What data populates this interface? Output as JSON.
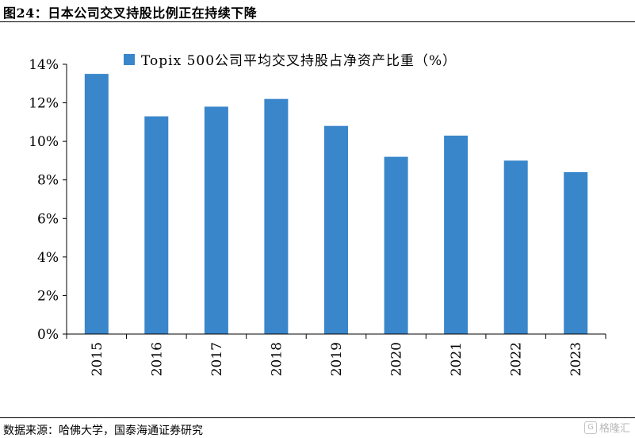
{
  "figure": {
    "title": "图24：日本公司交叉持股比例正在持续下降",
    "source": "数据来源：哈佛大学，国泰海通证券研究",
    "watermark": "格隆汇"
  },
  "chart_data": {
    "type": "bar",
    "title": "",
    "categories": [
      "2015",
      "2016",
      "2017",
      "2018",
      "2019",
      "2020",
      "2021",
      "2022",
      "2023"
    ],
    "series": [
      {
        "name": "Topix 500公司平均交叉持股占净资产比重（%）",
        "values": [
          13.5,
          11.3,
          11.8,
          12.2,
          10.8,
          9.2,
          10.3,
          9.0,
          8.4
        ],
        "color": "#3a86ca"
      }
    ],
    "xlabel": "",
    "ylabel": "",
    "ylim": [
      0,
      14
    ],
    "yticks": [
      0,
      2,
      4,
      6,
      8,
      10,
      12,
      14
    ],
    "ytick_labels": [
      "0%",
      "2%",
      "4%",
      "6%",
      "8%",
      "10%",
      "12%",
      "14%"
    ],
    "legend_position": "top-center",
    "grid": false
  }
}
